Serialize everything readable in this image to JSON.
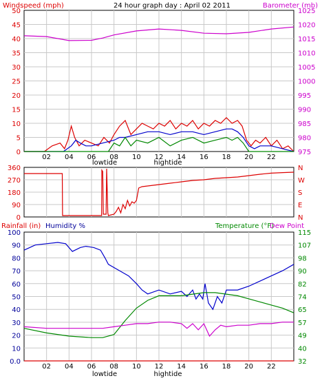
{
  "chart_data": [
    {
      "type": "line",
      "title": "24 hour graph day : April 02 2011",
      "ylabel_left": "Windspeed (mph)",
      "ylabel_right": "Barometer (mb)",
      "ylim_left": [
        0,
        50
      ],
      "ylim_right": [
        975,
        1025
      ],
      "yticks_left": [
        "0",
        "5",
        "10",
        "15",
        "20",
        "25",
        "30",
        "35",
        "40",
        "45",
        "50"
      ],
      "yticks_right": [
        "975",
        "980",
        "985",
        "990",
        "995",
        "1000",
        "1005",
        "1010",
        "1015",
        "1020",
        "1025"
      ],
      "xticks": [
        "02",
        "04",
        "06",
        "08",
        "10",
        "12",
        "14",
        "16",
        "18",
        "20",
        "22"
      ],
      "markers": [
        "lowtide",
        "hightide"
      ],
      "grid": true,
      "series": [
        {
          "role": "barometer",
          "color": "#cc00cc",
          "x": [
            0,
            2,
            4,
            6,
            7,
            8,
            10,
            12,
            14,
            16,
            18,
            20,
            22,
            24
          ],
          "y": [
            1016,
            1015.7,
            1014.3,
            1014.4,
            1015.2,
            1016.3,
            1017.7,
            1018.4,
            1017.9,
            1016.9,
            1016.7,
            1017.2,
            1018.4,
            1019.1
          ]
        },
        {
          "role": "gust",
          "color": "#dd0000",
          "x": [
            0,
            1.8,
            2.5,
            3.2,
            3.6,
            3.9,
            4.2,
            4.5,
            4.9,
            5.4,
            6,
            6.6,
            7.1,
            7.6,
            8,
            8.5,
            9,
            9.5,
            10,
            10.5,
            11,
            11.5,
            12,
            12.5,
            13,
            13.5,
            14,
            14.5,
            15,
            15.5,
            16,
            16.5,
            17,
            17.5,
            18,
            18.5,
            19,
            19.4,
            19.8,
            20.2,
            20.6,
            21,
            21.5,
            22,
            22.5,
            23,
            23.5,
            24
          ],
          "y": [
            0,
            0,
            2,
            3,
            1,
            4,
            9,
            5,
            2,
            4,
            3,
            2,
            5,
            3,
            6,
            9,
            11,
            6,
            8,
            10,
            9,
            8,
            10,
            9,
            11,
            8,
            10,
            9,
            11,
            8,
            10,
            9,
            11,
            10,
            12,
            10,
            11,
            9,
            4,
            2,
            4,
            3,
            5,
            2,
            4,
            1,
            2,
            0
          ]
        },
        {
          "role": "average",
          "color": "#0000cc",
          "x": [
            0,
            3.5,
            4.2,
            4.6,
            5,
            5.5,
            6,
            7,
            8,
            8.5,
            9,
            10,
            11,
            12,
            13,
            14,
            15,
            16,
            17,
            18,
            18.5,
            19,
            19.5,
            20,
            20.5,
            21,
            22,
            23,
            24
          ],
          "y": [
            0,
            0,
            2,
            4,
            3,
            2,
            2,
            3,
            4,
            5,
            5,
            6,
            7,
            7,
            6,
            7,
            7,
            6,
            7,
            8,
            8,
            7,
            5,
            2,
            1,
            2,
            2,
            1,
            0
          ]
        },
        {
          "role": "windspeed",
          "color": "#008800",
          "x": [
            0,
            7.5,
            8,
            8.5,
            9,
            9.5,
            10,
            11,
            12,
            13,
            14,
            15,
            16,
            17,
            18,
            18.5,
            19,
            19.5,
            20,
            24
          ],
          "y": [
            0,
            0,
            3,
            2,
            5,
            2,
            4,
            3,
            5,
            2,
            4,
            5,
            3,
            4,
            5,
            4,
            5,
            3,
            0,
            0
          ]
        }
      ]
    },
    {
      "type": "line",
      "ylim": [
        0,
        360
      ],
      "yticks_left": [
        "0",
        "90",
        "180",
        "270",
        "360"
      ],
      "yticks_right": [
        "N",
        "E",
        "S",
        "W",
        "N"
      ],
      "xticks": [],
      "grid": true,
      "series": [
        {
          "role": "wind-direction",
          "color": "#dd0000",
          "x": [
            0,
            3.4,
            3.42,
            6.9,
            6.92,
            7,
            7.05,
            7.3,
            7.35,
            7.45,
            7.5,
            8,
            8.2,
            8.4,
            8.6,
            8.8,
            9,
            9.2,
            9.4,
            9.6,
            9.8,
            10,
            10.2,
            10.5,
            11,
            12,
            13,
            14,
            15,
            16,
            17,
            18,
            19,
            20,
            21,
            22,
            23,
            24
          ],
          "y": [
            315,
            315,
            10,
            10,
            340,
            330,
            20,
            20,
            350,
            30,
            10,
            20,
            40,
            70,
            30,
            90,
            60,
            120,
            80,
            110,
            100,
            120,
            210,
            220,
            225,
            235,
            245,
            255,
            265,
            270,
            280,
            285,
            290,
            300,
            310,
            318,
            322,
            325
          ]
        }
      ]
    },
    {
      "type": "line",
      "ylabel_left": "Rainfall (in)",
      "ylabel_left2": "Humidity %",
      "ylabel_right": "Temperature (°F)",
      "ylabel_right2": "Dew Point",
      "ylim_left": [
        0,
        100
      ],
      "ylim_right": [
        32,
        115
      ],
      "yticks_left": [
        "0.0",
        "10",
        "20",
        "30",
        "40",
        "50",
        "60",
        "70",
        "80",
        "90",
        "100"
      ],
      "yticks_right": [
        "32",
        "40",
        "49",
        "57",
        "65",
        "74",
        "82",
        "90",
        "98",
        "107",
        "115"
      ],
      "xticks": [
        "02",
        "04",
        "06",
        "08",
        "10",
        "12",
        "14",
        "16",
        "18",
        "20",
        "22"
      ],
      "markers": [
        "lowtide",
        "hightide"
      ],
      "grid": true,
      "series": [
        {
          "role": "rainfall",
          "color": "#dd0000",
          "x": [
            0,
            24
          ],
          "y": [
            0,
            0
          ]
        },
        {
          "role": "humidity",
          "color": "#0000cc",
          "x": [
            0,
            0.5,
            1,
            2,
            3,
            3.7,
            4.3,
            5,
            5.5,
            6.2,
            6.8,
            7.2,
            7.5,
            8.5,
            9.3,
            10,
            10.5,
            11,
            12,
            13,
            14,
            14.5,
            15,
            15.3,
            15.6,
            15.9,
            16.1,
            16.4,
            16.8,
            17.2,
            17.6,
            18,
            19,
            20,
            21,
            22,
            23,
            24
          ],
          "y": [
            86,
            88,
            90,
            91,
            92,
            91,
            85,
            88,
            89,
            88,
            86,
            80,
            75,
            70,
            66,
            60,
            55,
            52,
            55,
            52,
            54,
            50,
            55,
            48,
            52,
            48,
            60,
            45,
            40,
            50,
            45,
            55,
            55,
            58,
            62,
            66,
            70,
            75
          ]
        },
        {
          "role": "temperature",
          "color": "#008800",
          "x": [
            0,
            2,
            4,
            6,
            7,
            8,
            9,
            10,
            11,
            12,
            13,
            14,
            15,
            16,
            17,
            18,
            19,
            20,
            21,
            22,
            23,
            24
          ],
          "y": [
            53,
            50,
            48,
            47,
            47,
            49,
            58,
            66,
            71,
            74,
            74,
            74,
            75,
            76,
            76,
            75,
            74,
            72,
            70,
            68,
            66,
            63
          ]
        },
        {
          "role": "dewpoint",
          "color": "#cc00cc",
          "x": [
            0,
            2,
            4,
            6,
            7,
            8,
            9,
            10,
            11,
            12,
            13,
            14,
            14.5,
            15,
            15.5,
            16,
            16.5,
            17,
            17.5,
            18,
            19,
            20,
            21,
            22,
            23,
            24
          ],
          "y": [
            54,
            53,
            53,
            53,
            53,
            54,
            55,
            56,
            56,
            57,
            57,
            56,
            53,
            56,
            52,
            56,
            48,
            52,
            55,
            54,
            55,
            55,
            56,
            56,
            57,
            57
          ]
        }
      ]
    }
  ]
}
